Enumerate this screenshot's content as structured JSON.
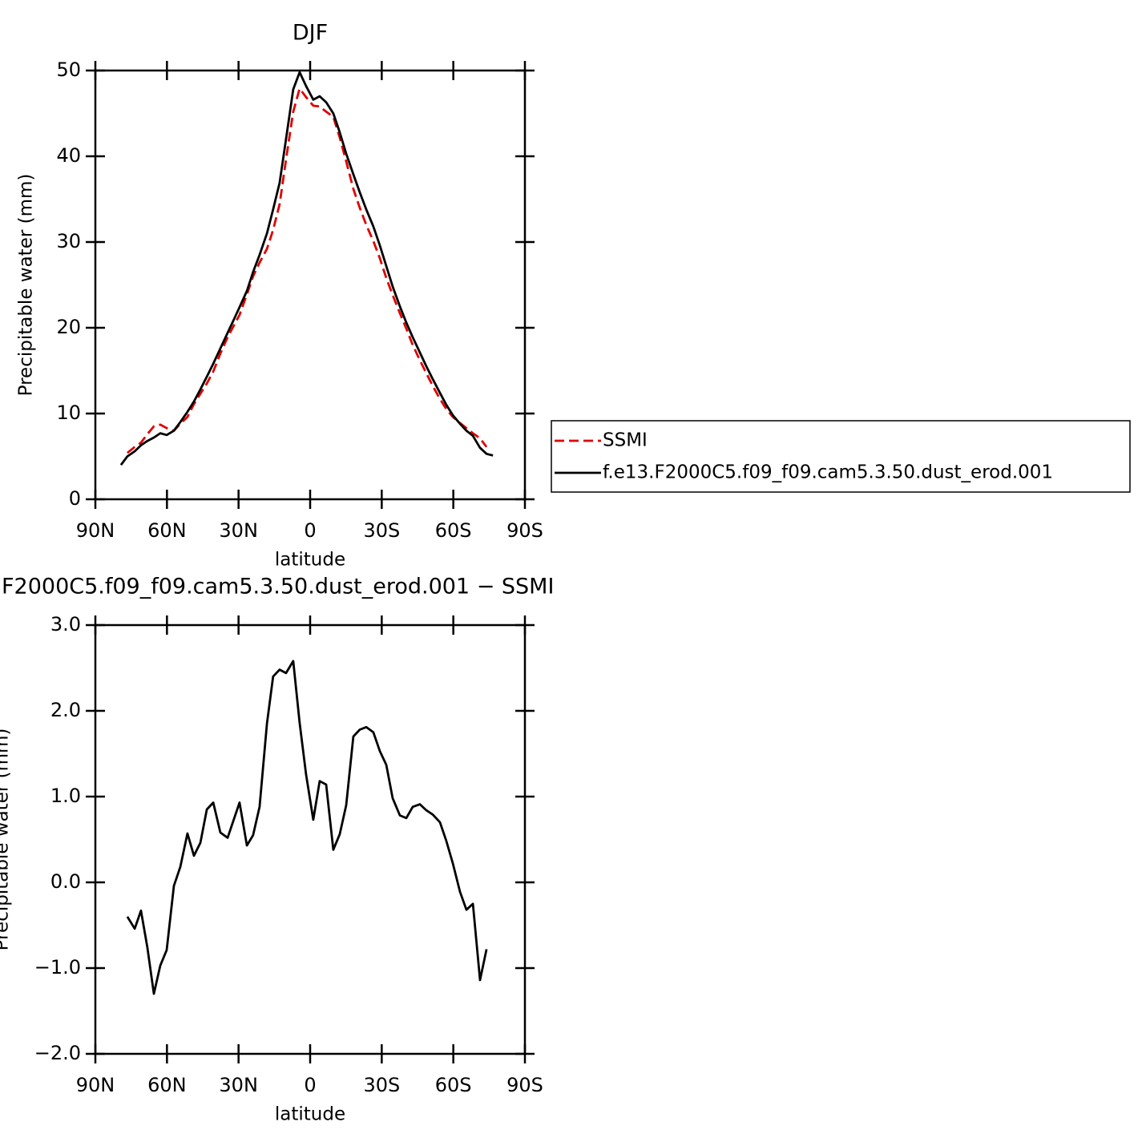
{
  "chart_data": [
    {
      "type": "line",
      "title": "DJF",
      "x_label": "latitude",
      "y_label": "Precipitable water (mm)",
      "x": [
        79.3,
        76.6,
        73.5,
        70.9,
        68.2,
        65.5,
        62.8,
        60.1,
        57.1,
        54.4,
        51.4,
        48.7,
        46.0,
        43.3,
        40.6,
        37.6,
        34.6,
        31.9,
        29.6,
        26.5,
        23.9,
        21.2,
        18.1,
        15.5,
        12.8,
        10.1,
        7.1,
        4.4,
        1.7,
        -1.3,
        -4.0,
        -6.7,
        -9.7,
        -12.4,
        -15.1,
        -18.1,
        -20.8,
        -23.5,
        -26.5,
        -29.2,
        -31.9,
        -34.6,
        -37.6,
        -40.3,
        -43.0,
        -46.0,
        -48.7,
        -51.4,
        -54.4,
        -57.1,
        -59.8,
        -62.8,
        -65.5,
        -68.2,
        -71.2,
        -73.9,
        -76.6
      ],
      "series": [
        {
          "name": "SSMI",
          "color": "#e00000",
          "line_style": "dashed",
          "values": [
            null,
            5.4,
            6.1,
            6.6,
            7.6,
            8.5,
            8.7,
            8.3,
            8.0,
            8.8,
            9.6,
            11.1,
            12.3,
            13.5,
            14.9,
            17.0,
            18.9,
            20.3,
            21.5,
            23.9,
            26.0,
            27.6,
            29.2,
            31.4,
            34.4,
            39.6,
            45.2,
            47.9,
            46.9,
            45.9,
            45.8,
            45.2,
            44.6,
            42.2,
            39.4,
            36.2,
            34.0,
            32.0,
            30.1,
            28.1,
            25.8,
            23.8,
            21.7,
            19.9,
            18.0,
            16.2,
            14.7,
            13.2,
            11.7,
            10.5,
            9.6,
            8.9,
            8.3,
            7.7,
            7.1,
            6.1,
            null
          ]
        },
        {
          "name": "f.e13.F2000C5.f09_f09.cam5.3.50.dust_erod.001",
          "color": "#000000",
          "line_style": "solid",
          "values": [
            4.0,
            5.0,
            5.6,
            6.3,
            6.8,
            7.2,
            7.7,
            7.5,
            8.0,
            9.0,
            10.2,
            11.4,
            12.8,
            14.3,
            15.8,
            17.6,
            19.4,
            21.0,
            22.4,
            24.3,
            26.5,
            28.5,
            31.0,
            33.8,
            36.9,
            42.0,
            47.8,
            49.8,
            48.2,
            46.6,
            47.0,
            46.3,
            45.0,
            42.8,
            40.3,
            37.9,
            35.8,
            33.8,
            31.8,
            29.6,
            27.2,
            24.8,
            22.5,
            20.6,
            18.9,
            17.1,
            15.5,
            14.0,
            12.4,
            11.0,
            9.8,
            8.8,
            8.0,
            7.4,
            6.0,
            5.3,
            5.1
          ]
        }
      ],
      "xlim": [
        90,
        -90
      ],
      "xticks": [
        {
          "value": 90,
          "label": "90N"
        },
        {
          "value": 60,
          "label": "60N"
        },
        {
          "value": 30,
          "label": "30N"
        },
        0,
        {
          "value": -30,
          "label": "30S"
        },
        {
          "value": -60,
          "label": "60S"
        },
        {
          "value": -90,
          "label": "90S"
        }
      ],
      "ylim": [
        0,
        50
      ],
      "yticks": [
        0,
        10,
        20,
        30,
        40,
        50
      ],
      "legend": "right"
    },
    {
      "type": "line",
      "title": "F2000C5.f09_f09.cam5.3.50.dust_erod.001 − SSMI",
      "x_label": "latitude",
      "y_label": "Precipitable water (mm)",
      "x": [
        76.6,
        73.5,
        70.9,
        68.2,
        65.5,
        62.8,
        60.1,
        57.1,
        54.4,
        51.4,
        48.7,
        46.0,
        43.3,
        40.6,
        37.6,
        34.6,
        31.9,
        29.6,
        26.5,
        23.9,
        21.2,
        18.1,
        15.5,
        12.8,
        10.1,
        7.1,
        4.4,
        1.7,
        -1.3,
        -4.0,
        -6.7,
        -9.7,
        -12.4,
        -15.1,
        -18.1,
        -20.8,
        -23.5,
        -26.5,
        -29.2,
        -31.9,
        -34.6,
        -37.6,
        -40.3,
        -43.0,
        -46.0,
        -48.7,
        -51.4,
        -54.4,
        -57.1,
        -59.8,
        -62.8,
        -65.5,
        -68.2,
        -71.2,
        -73.9
      ],
      "series": [
        {
          "color": "#000000",
          "line_style": "solid",
          "values": [
            -0.4,
            -0.54,
            -0.33,
            -0.76,
            -1.3,
            -0.97,
            -0.79,
            -0.04,
            0.18,
            0.57,
            0.31,
            0.46,
            0.85,
            0.93,
            0.58,
            0.52,
            0.74,
            0.93,
            0.43,
            0.55,
            0.88,
            1.85,
            2.4,
            2.48,
            2.44,
            2.58,
            1.86,
            1.26,
            0.73,
            1.18,
            1.14,
            0.38,
            0.56,
            0.9,
            1.7,
            1.78,
            1.81,
            1.75,
            1.53,
            1.37,
            0.98,
            0.78,
            0.75,
            0.88,
            0.91,
            0.84,
            0.79,
            0.7,
            0.48,
            0.22,
            -0.11,
            -0.32,
            -0.25,
            -1.14,
            -0.78
          ]
        }
      ],
      "xlim": [
        90,
        -90
      ],
      "xticks": [
        {
          "value": 90,
          "label": "90N"
        },
        {
          "value": 60,
          "label": "60N"
        },
        {
          "value": 30,
          "label": "30N"
        },
        0,
        {
          "value": -30,
          "label": "30S"
        },
        {
          "value": -60,
          "label": "60S"
        },
        {
          "value": -90,
          "label": "90S"
        }
      ],
      "ylim": [
        -2,
        3
      ],
      "yticks": [
        {
          "value": -2,
          "label": "−2.0"
        },
        {
          "value": -1,
          "label": "−1.0"
        },
        {
          "value": 0,
          "label": "0.0"
        },
        {
          "value": 1,
          "label": "1.0"
        },
        {
          "value": 2,
          "label": "2.0"
        },
        {
          "value": 3,
          "label": "3.0"
        }
      ]
    }
  ]
}
